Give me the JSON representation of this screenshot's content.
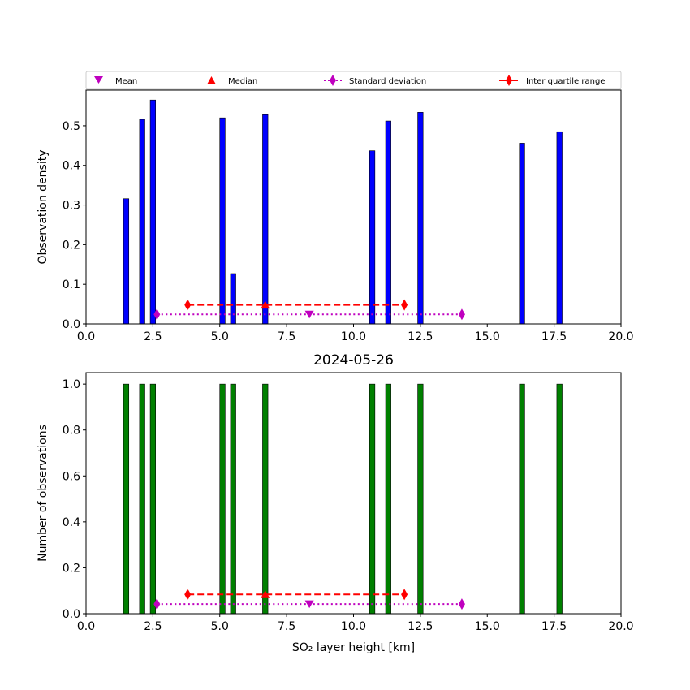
{
  "chart_data": [
    {
      "type": "bar",
      "title": "",
      "xlabel": "",
      "ylabel": "Observation density",
      "xlim": [
        0,
        20
      ],
      "ylim": [
        0,
        0.59
      ],
      "xticks": [
        "0.0",
        "2.5",
        "5.0",
        "7.5",
        "10.0",
        "12.5",
        "15.0",
        "17.5",
        "20.0"
      ],
      "yticks": [
        "0.0",
        "0.1",
        "0.2",
        "0.3",
        "0.4",
        "0.5"
      ],
      "bar_color": "#0000ff",
      "x": [
        1.5,
        2.1,
        2.5,
        5.1,
        5.5,
        6.7,
        10.7,
        11.3,
        12.5,
        16.3,
        17.7
      ],
      "values": [
        0.316,
        0.516,
        0.565,
        0.52,
        0.127,
        0.528,
        0.437,
        0.512,
        0.534,
        0.456,
        0.485
      ],
      "legend": {
        "placement": "top",
        "entries": [
          {
            "label": "Mean",
            "marker": "triangle-down",
            "color": "#bf00bf"
          },
          {
            "label": "Median",
            "marker": "triangle-up",
            "color": "#ff0000"
          },
          {
            "label": "Standard deviation",
            "marker": "thin-diamond",
            "line": "dotted",
            "color": "#bf00bf"
          },
          {
            "label": "Inter quartile range",
            "marker": "thin-diamond",
            "line": "dashed",
            "color": "#ff0000"
          }
        ]
      },
      "stats": {
        "mean": {
          "x": 8.35,
          "y": 0.024
        },
        "median": {
          "x": 6.7,
          "y": 0.048
        },
        "std_range": {
          "x": [
            2.65,
            14.05
          ],
          "y": 0.024
        },
        "iqr_range": {
          "x": [
            3.8,
            11.9
          ],
          "y": 0.048
        }
      }
    },
    {
      "type": "bar",
      "title": "2024-05-26",
      "xlabel": "SO₂ layer height [km]",
      "ylabel": "Number of observations",
      "xlim": [
        0,
        20
      ],
      "ylim": [
        0,
        1.05
      ],
      "xticks": [
        "0.0",
        "2.5",
        "5.0",
        "7.5",
        "10.0",
        "12.5",
        "15.0",
        "17.5",
        "20.0"
      ],
      "yticks": [
        "0.0",
        "0.2",
        "0.4",
        "0.6",
        "0.8",
        "1.0"
      ],
      "bar_color": "#008000",
      "x": [
        1.5,
        2.1,
        2.5,
        5.1,
        5.5,
        6.7,
        10.7,
        11.3,
        12.5,
        16.3,
        17.7
      ],
      "values": [
        1,
        1,
        1,
        1,
        1,
        1,
        1,
        1,
        1,
        1,
        1
      ],
      "stats": {
        "mean": {
          "x": 8.35,
          "y": 0.042
        },
        "median": {
          "x": 6.7,
          "y": 0.084
        },
        "std_range": {
          "x": [
            2.65,
            14.05
          ],
          "y": 0.042
        },
        "iqr_range": {
          "x": [
            3.8,
            11.9
          ],
          "y": 0.084
        }
      }
    }
  ]
}
